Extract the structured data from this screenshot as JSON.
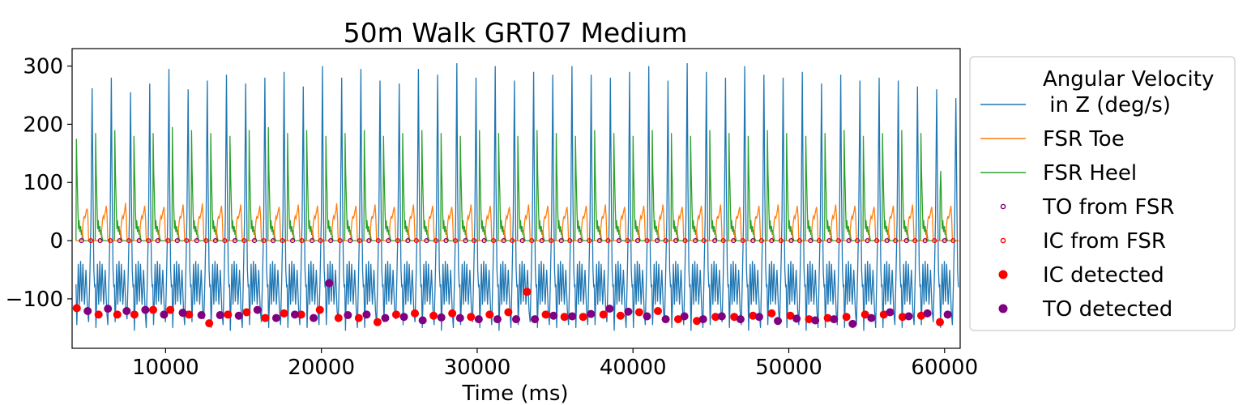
{
  "chart_data": {
    "type": "line",
    "title": "50m Walk GRT07 Medium",
    "xlabel": "Time (ms)",
    "ylabel": "",
    "xlim": [
      4000,
      61000
    ],
    "ylim": [
      -185,
      330
    ],
    "xticks": [
      10000,
      20000,
      30000,
      40000,
      50000,
      60000
    ],
    "xtick_labels": [
      "10000",
      "20000",
      "30000",
      "40000",
      "50000",
      "60000"
    ],
    "yticks": [
      -100,
      0,
      100,
      200,
      300
    ],
    "ytick_labels": [
      "−100",
      "0",
      "100",
      "200",
      "300"
    ],
    "grid": false,
    "legend_position": "outside-right",
    "colors": {
      "angular_velocity": "#1f77b4",
      "fsr_toe": "#ff7f0e",
      "fsr_heel": "#2ca02c",
      "to_from_fsr": "#800080",
      "ic_from_fsr": "#ff0000",
      "ic_detected": "#ff0000",
      "to_detected": "#800080"
    },
    "stride": {
      "start_ms": 4250,
      "period_ms": 1232,
      "count": 46,
      "peak_values": [
        262,
        280,
        255,
        270,
        295,
        260,
        275,
        285,
        270,
        280,
        290,
        265,
        300,
        280,
        295,
        275,
        270,
        295,
        285,
        305,
        280,
        300,
        275,
        290,
        285,
        300,
        285,
        280,
        290,
        300,
        275,
        305,
        290,
        280,
        300,
        285,
        280,
        290,
        270,
        285,
        275,
        280,
        275,
        265,
        260,
        245
      ],
      "trough_values": [
        -145,
        -150,
        -140,
        -155,
        -145,
        -150,
        -140,
        -150,
        -155,
        -145,
        -150,
        -150,
        -150,
        -145,
        -155,
        -150,
        -140,
        -145,
        -150,
        -155,
        -145,
        -150,
        -155,
        -145,
        -150,
        -150,
        -150,
        -145,
        -155,
        -150,
        -145,
        -150,
        -155,
        -145,
        -150,
        -155,
        -145,
        -150,
        -155,
        -150,
        -150,
        -155,
        -150,
        -150,
        -145,
        -150
      ],
      "toe_peak_values": [
        55,
        60,
        65,
        60,
        58,
        62,
        64,
        60,
        62,
        60,
        58,
        62,
        60,
        64,
        60,
        62,
        58,
        62,
        60,
        58,
        62,
        60,
        58,
        62,
        60,
        58,
        60,
        62,
        58,
        60,
        62,
        58,
        60,
        62,
        58,
        60,
        62,
        60,
        58,
        62,
        60,
        58,
        60,
        62,
        58,
        60
      ],
      "heel_peak_values": [
        175,
        185,
        190,
        180,
        185,
        195,
        190,
        185,
        180,
        190,
        195,
        185,
        190,
        180,
        185,
        190,
        180,
        185,
        190,
        185,
        180,
        190,
        185,
        180,
        190,
        185,
        180,
        190,
        185,
        180,
        190,
        185,
        180,
        190,
        185,
        180,
        190,
        185,
        180,
        185,
        190,
        180,
        185,
        190,
        185,
        85
      ]
    },
    "series": [
      {
        "name": "Angular Velocity\n in Z (deg/s)",
        "line1": "Angular Velocity",
        "line2": " in Z (deg/s)",
        "kind": "line"
      },
      {
        "name": "FSR Toe",
        "kind": "line"
      },
      {
        "name": "FSR Heel",
        "kind": "line"
      },
      {
        "name": "TO from FSR",
        "kind": "marker-hollow"
      },
      {
        "name": "IC from FSR",
        "kind": "marker-hollow"
      },
      {
        "name": "IC detected",
        "kind": "marker-filled"
      },
      {
        "name": "TO detected",
        "kind": "marker-filled"
      }
    ],
    "to_from_fsr_x": [
      4600,
      5800,
      7050,
      8300,
      9500,
      10750,
      12000,
      13200,
      14450,
      15700,
      16900,
      18150,
      19400,
      20600,
      21850,
      23050,
      24300,
      25550,
      26750,
      28000,
      29250,
      30450,
      31700,
      32900,
      34150,
      35400,
      36600,
      37850,
      39100,
      40300,
      41550,
      42750,
      44000,
      45250,
      46450,
      47700,
      48900,
      50150,
      51400,
      52600,
      53850,
      55050,
      56300,
      57550,
      58750,
      60000
    ],
    "ic_from_fsr_x": [
      5200,
      6450,
      7650,
      8900,
      10150,
      11350,
      12600,
      13800,
      15050,
      16300,
      17500,
      18750,
      19950,
      21200,
      22450,
      23650,
      24900,
      26100,
      27350,
      28600,
      29800,
      31050,
      32250,
      33500,
      34750,
      35950,
      37200,
      38400,
      39650,
      40900,
      42100,
      43350,
      44550,
      45800,
      47050,
      48250,
      49500,
      50700,
      51950,
      53200,
      54400,
      55650,
      56850,
      58100,
      59350,
      60550
    ],
    "ic_detected": [
      [
        4300,
        -116
      ],
      [
        5700,
        -127
      ],
      [
        6900,
        -127
      ],
      [
        8000,
        -127
      ],
      [
        9200,
        -119
      ],
      [
        10300,
        -119
      ],
      [
        11500,
        -127
      ],
      [
        12800,
        -142
      ],
      [
        14000,
        -127
      ],
      [
        15200,
        -123
      ],
      [
        16400,
        -133
      ],
      [
        17600,
        -125
      ],
      [
        18700,
        -127
      ],
      [
        19900,
        -119
      ],
      [
        21100,
        -133
      ],
      [
        22400,
        -133
      ],
      [
        23600,
        -140
      ],
      [
        24800,
        -127
      ],
      [
        26000,
        -125
      ],
      [
        27200,
        -129
      ],
      [
        28400,
        -125
      ],
      [
        29600,
        -131
      ],
      [
        30800,
        -127
      ],
      [
        32000,
        -123
      ],
      [
        33200,
        -88
      ],
      [
        34400,
        -127
      ],
      [
        35600,
        -131
      ],
      [
        36800,
        -131
      ],
      [
        38100,
        -127
      ],
      [
        39200,
        -129
      ],
      [
        40400,
        -123
      ],
      [
        41600,
        -121
      ],
      [
        42900,
        -135
      ],
      [
        44100,
        -138
      ],
      [
        45300,
        -131
      ],
      [
        46500,
        -131
      ],
      [
        47700,
        -129
      ],
      [
        48900,
        -125
      ],
      [
        50100,
        -129
      ],
      [
        51300,
        -135
      ],
      [
        52500,
        -133
      ],
      [
        53700,
        -131
      ],
      [
        54900,
        -127
      ],
      [
        56100,
        -127
      ],
      [
        57300,
        -131
      ],
      [
        58500,
        -129
      ],
      [
        59700,
        -140
      ]
    ],
    "to_detected": [
      [
        5000,
        -121
      ],
      [
        6300,
        -117
      ],
      [
        7500,
        -121
      ],
      [
        8700,
        -119
      ],
      [
        9900,
        -127
      ],
      [
        11100,
        -124
      ],
      [
        12300,
        -128
      ],
      [
        13500,
        -128
      ],
      [
        14700,
        -129
      ],
      [
        15900,
        -119
      ],
      [
        17100,
        -133
      ],
      [
        18300,
        -127
      ],
      [
        19500,
        -133
      ],
      [
        20500,
        -73
      ],
      [
        21700,
        -128
      ],
      [
        22900,
        -127
      ],
      [
        24100,
        -133
      ],
      [
        25300,
        -131
      ],
      [
        26500,
        -137
      ],
      [
        27700,
        -132
      ],
      [
        28900,
        -133
      ],
      [
        30100,
        -135
      ],
      [
        31300,
        -135
      ],
      [
        32500,
        -135
      ],
      [
        33700,
        -135
      ],
      [
        34900,
        -129
      ],
      [
        36100,
        -130
      ],
      [
        37300,
        -126
      ],
      [
        38500,
        -117
      ],
      [
        39700,
        -122
      ],
      [
        40900,
        -130
      ],
      [
        42100,
        -135
      ],
      [
        43300,
        -130
      ],
      [
        44500,
        -135
      ],
      [
        45700,
        -130
      ],
      [
        46900,
        -135
      ],
      [
        48100,
        -131
      ],
      [
        49300,
        -138
      ],
      [
        50500,
        -134
      ],
      [
        51700,
        -137
      ],
      [
        52900,
        -135
      ],
      [
        54100,
        -143
      ],
      [
        55300,
        -133
      ],
      [
        56500,
        -123
      ],
      [
        57700,
        -130
      ],
      [
        58900,
        -125
      ],
      [
        60200,
        -127
      ]
    ]
  }
}
